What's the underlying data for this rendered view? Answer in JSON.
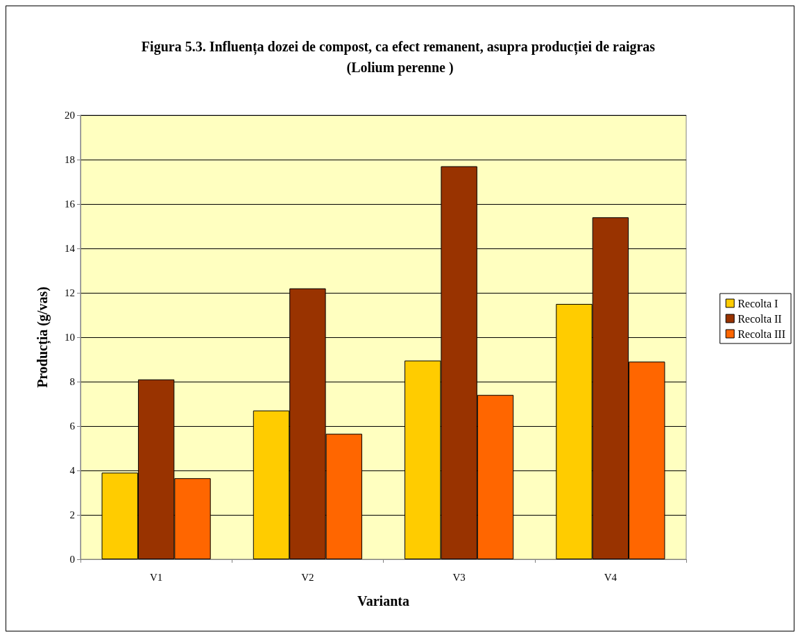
{
  "chart_data": {
    "type": "bar",
    "title": "Figura 5.3. Influența dozei de compost, ca efect remanent, asupra producției de raigras (Lolium perenne )",
    "xlabel": "Varianta",
    "ylabel": "Producția (g/vas)",
    "categories": [
      "V1",
      "V2",
      "V3",
      "V4"
    ],
    "series": [
      {
        "name": "Recolta I",
        "color": "#ffcc00",
        "values": [
          3.9,
          6.7,
          8.95,
          11.5
        ]
      },
      {
        "name": "Recolta II",
        "color": "#993300",
        "values": [
          8.1,
          12.2,
          17.7,
          15.4
        ]
      },
      {
        "name": "Recolta III",
        "color": "#ff6600",
        "values": [
          3.65,
          5.65,
          7.4,
          8.9
        ]
      }
    ],
    "ylim": [
      0,
      20
    ],
    "yticks": [
      0,
      2,
      4,
      6,
      8,
      10,
      12,
      14,
      16,
      18,
      20
    ],
    "grid": "y",
    "legend": "right"
  }
}
